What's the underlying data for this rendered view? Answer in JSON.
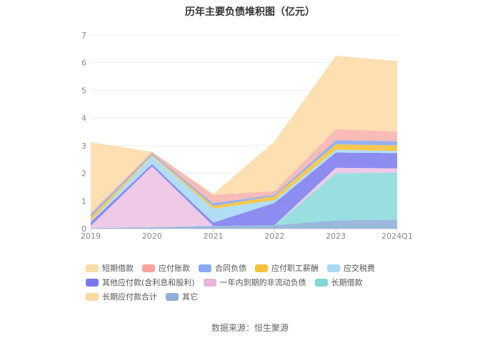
{
  "chart_data": {
    "type": "area",
    "stacked": true,
    "title": "历年主要负债堆积图（亿元）",
    "categories": [
      "2019",
      "2020",
      "2021",
      "2022",
      "2023",
      "2024Q1"
    ],
    "ylim": [
      0,
      7
    ],
    "yticks": [
      "0",
      "1",
      "2",
      "3",
      "4",
      "5",
      "6",
      "7"
    ],
    "grid": true,
    "legend_position": "bottom",
    "series": [
      {
        "name": "其它",
        "color": "#8fb1d9",
        "values": [
          0.02,
          0.05,
          0.1,
          0.13,
          0.3,
          0.33
        ]
      },
      {
        "name": "长期应付款合计",
        "color": "#fde0a8",
        "values": [
          0.0,
          0.0,
          0.0,
          0.0,
          0.0,
          0.0
        ]
      },
      {
        "name": "长期借款",
        "color": "#8fdcdc",
        "values": [
          0.0,
          0.0,
          0.0,
          0.0,
          1.7,
          1.7
        ]
      },
      {
        "name": "一年内到期的非流动负债",
        "color": "#ecc4e4",
        "values": [
          0.08,
          2.2,
          0.0,
          0.0,
          0.2,
          0.15
        ]
      },
      {
        "name": "其他应付款(含利息和股利)",
        "color": "#8080f0",
        "values": [
          0.14,
          0.08,
          0.12,
          0.8,
          0.55,
          0.55
        ]
      },
      {
        "name": "应交税费",
        "color": "#a8daf5",
        "values": [
          0.03,
          0.3,
          0.5,
          0.1,
          0.1,
          0.08
        ]
      },
      {
        "name": "应付职工薪酬",
        "color": "#f5c23c",
        "values": [
          0.15,
          0.05,
          0.1,
          0.15,
          0.2,
          0.2
        ]
      },
      {
        "name": "合同负债",
        "color": "#8ba8f0",
        "values": [
          0.1,
          0.05,
          0.1,
          0.05,
          0.15,
          0.15
        ]
      },
      {
        "name": "应付账款",
        "color": "#f8b4b0",
        "values": [
          0.06,
          0.05,
          0.3,
          0.13,
          0.4,
          0.35
        ]
      },
      {
        "name": "短期借款",
        "color": "#fddca8",
        "values": [
          2.55,
          0.0,
          0.03,
          1.8,
          2.65,
          2.55
        ]
      }
    ],
    "legend_order": [
      "短期借款",
      "应付账款",
      "合同负债",
      "应付职工薪酬",
      "应交税费",
      "其他应付款(含利息和股利)",
      "一年内到期的非流动负债",
      "长期借款",
      "长期应付款合计",
      "其它"
    ],
    "legend_colors": {
      "短期借款": "#fddca8",
      "应付账款": "#f8a49c",
      "合同负债": "#8ba8f0",
      "应付职工薪酬": "#f5c23c",
      "应交税费": "#a8daf5",
      "其他应付款(含利息和股利)": "#7878ee",
      "一年内到期的非流动负债": "#e6b4de",
      "长期借款": "#80d8d8",
      "长期应付款合计": "#fdd8a0",
      "其它": "#8fb1d9"
    }
  },
  "source_text": "数据来源：恒生聚源"
}
